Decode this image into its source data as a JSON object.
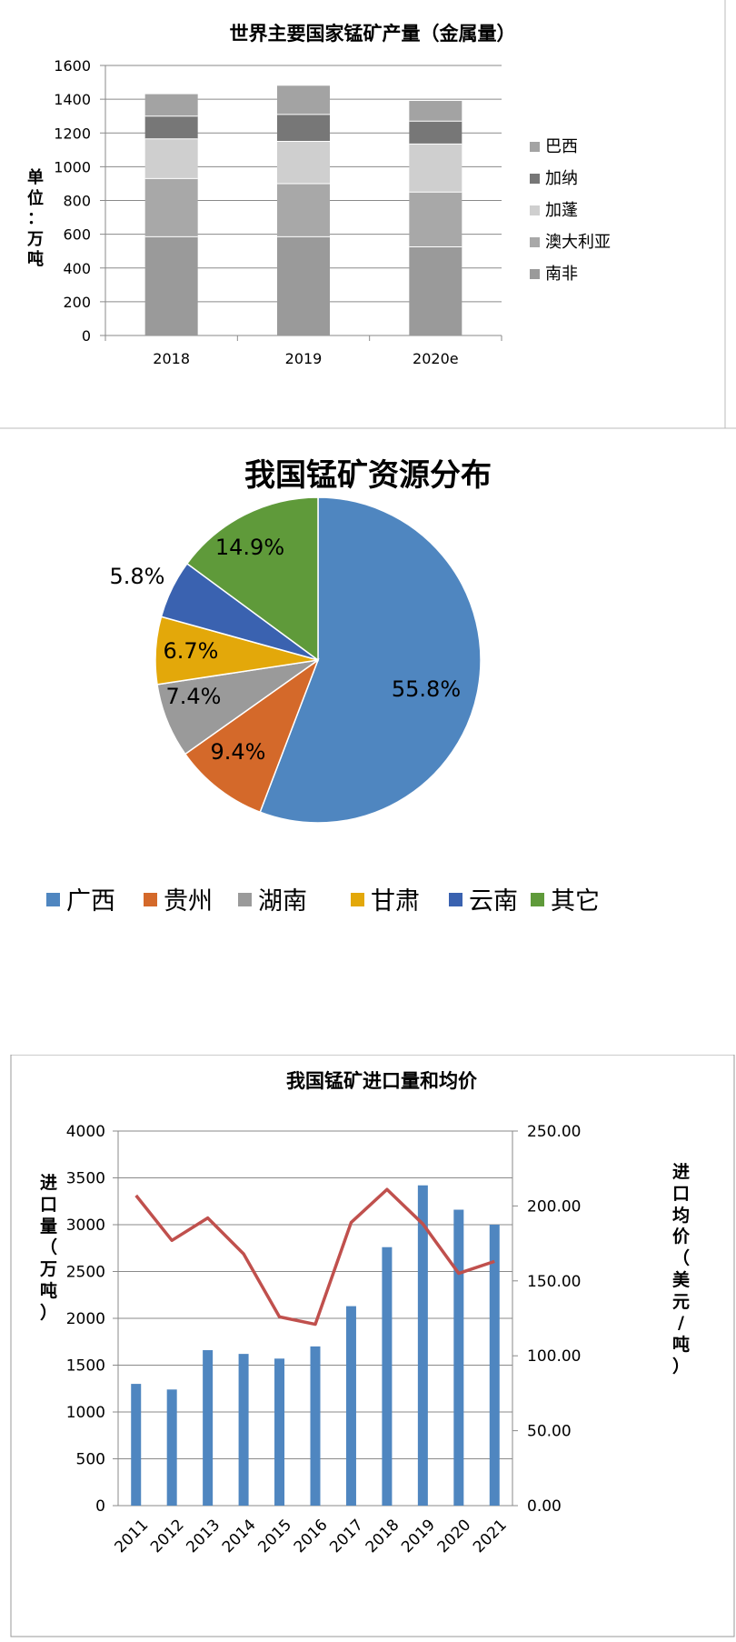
{
  "chart_data": [
    {
      "type": "bar",
      "stacked": true,
      "title": "世界主要国家锰矿产量（金属量）",
      "ylabel": "单位：万吨",
      "categories": [
        "2018",
        "2019",
        "2020e"
      ],
      "ylim": [
        0,
        1600
      ],
      "yticks": [
        0,
        200,
        400,
        600,
        800,
        1000,
        1200,
        1400,
        1600
      ],
      "grid": true,
      "legend_position": "right",
      "series": [
        {
          "name": "南非",
          "values": [
            585,
            585,
            525
          ],
          "color": "#9a9a9a"
        },
        {
          "name": "澳大利亚",
          "values": [
            345,
            315,
            325
          ],
          "color": "#a8a8a8"
        },
        {
          "name": "加蓬",
          "values": [
            235,
            250,
            285
          ],
          "color": "#cfcfcf"
        },
        {
          "name": "加纳",
          "values": [
            135,
            160,
            135
          ],
          "color": "#777777"
        },
        {
          "name": "巴西",
          "values": [
            130,
            170,
            120
          ],
          "color": "#a3a3a3"
        }
      ]
    },
    {
      "type": "pie",
      "title": "我国锰矿资源分布",
      "legend_position": "bottom",
      "labels": [
        "广西",
        "贵州",
        "湖南",
        "甘肃",
        "云南",
        "其它"
      ],
      "values": [
        55.8,
        9.4,
        7.4,
        6.7,
        5.8,
        14.9
      ],
      "value_labels": [
        "55.8%",
        "9.4%",
        "7.4%",
        "6.7%",
        "5.8%",
        "14.9%"
      ],
      "colors": [
        "#4f86c0",
        "#d4692a",
        "#9a9a9a",
        "#e3a80a",
        "#3a62b0",
        "#5f9a3a"
      ]
    },
    {
      "type": "bar",
      "title": "我国锰矿进口量和均价",
      "categories": [
        "2011",
        "2012",
        "2013",
        "2014",
        "2015",
        "2016",
        "2017",
        "2018",
        "2019",
        "2020",
        "2021"
      ],
      "ylabel": "进口量（万吨）",
      "y2label": "进口均价（美元/吨）",
      "ylim": [
        0,
        4000
      ],
      "y2lim": [
        0,
        250
      ],
      "yticks": [
        0,
        500,
        1000,
        1500,
        2000,
        2500,
        3000,
        3500,
        4000
      ],
      "y2ticks": [
        "0.00",
        "50.00",
        "100.00",
        "150.00",
        "200.00",
        "250.00"
      ],
      "grid": true,
      "series": [
        {
          "kind": "bar",
          "axis": "left",
          "values": [
            1300,
            1240,
            1660,
            1620,
            1570,
            1700,
            2130,
            2760,
            3420,
            3160,
            3000
          ],
          "color": "#4f86c0"
        },
        {
          "kind": "line",
          "axis": "right",
          "values": [
            207,
            177,
            192,
            168,
            126,
            121,
            189,
            211,
            188,
            155,
            163
          ],
          "color": "#c0504d"
        }
      ]
    }
  ]
}
